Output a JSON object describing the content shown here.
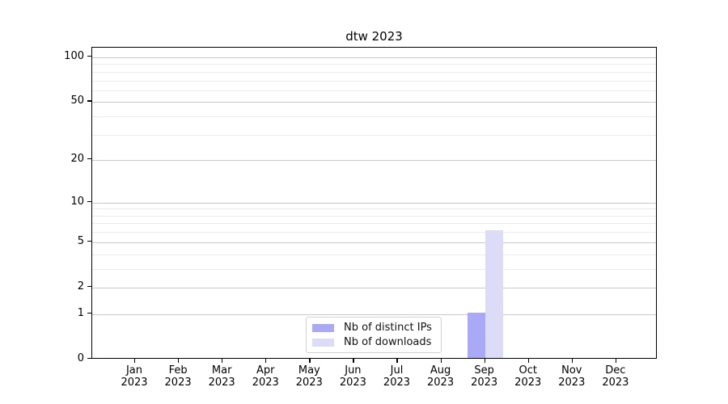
{
  "chart_data": {
    "type": "bar",
    "title": "dtw 2023",
    "categories": [
      "Jan 2023",
      "Feb 2023",
      "Mar 2023",
      "Apr 2023",
      "May 2023",
      "Jun 2023",
      "Jul 2023",
      "Aug 2023",
      "Sep 2023",
      "Oct 2023",
      "Nov 2023",
      "Dec 2023"
    ],
    "series": [
      {
        "name": "Nb of distinct IPs",
        "color": "#a9a9f7",
        "values": [
          0,
          0,
          0,
          0,
          0,
          0,
          0,
          0,
          1,
          0,
          0,
          0
        ]
      },
      {
        "name": "Nb of downloads",
        "color": "#dcdcf9",
        "values": [
          0,
          0,
          0,
          0,
          0,
          0,
          0,
          0,
          6,
          0,
          0,
          0
        ]
      }
    ],
    "y_axis": {
      "scale": "log1p",
      "major_ticks": [
        0,
        1,
        2,
        5,
        10,
        20,
        50,
        100
      ],
      "minor_ticks": [
        3,
        4,
        6,
        7,
        8,
        9,
        30,
        40,
        60,
        70,
        80,
        90
      ],
      "range": [
        0,
        116
      ]
    },
    "x_axis": {
      "tick_labels_line1": [
        "Jan",
        "Feb",
        "Mar",
        "Apr",
        "May",
        "Jun",
        "Jul",
        "Aug",
        "Sep",
        "Oct",
        "Nov",
        "Dec"
      ],
      "tick_labels_line2": [
        "2023",
        "2023",
        "2023",
        "2023",
        "2023",
        "2023",
        "2023",
        "2023",
        "2023",
        "2023",
        "2023",
        "2023"
      ]
    },
    "legend": {
      "position": "lower center"
    },
    "grid": true,
    "colors": {
      "major_grid": "#c8c8c8",
      "minor_grid": "#ebebeb",
      "spine": "#000000",
      "background": "#ffffff"
    }
  }
}
